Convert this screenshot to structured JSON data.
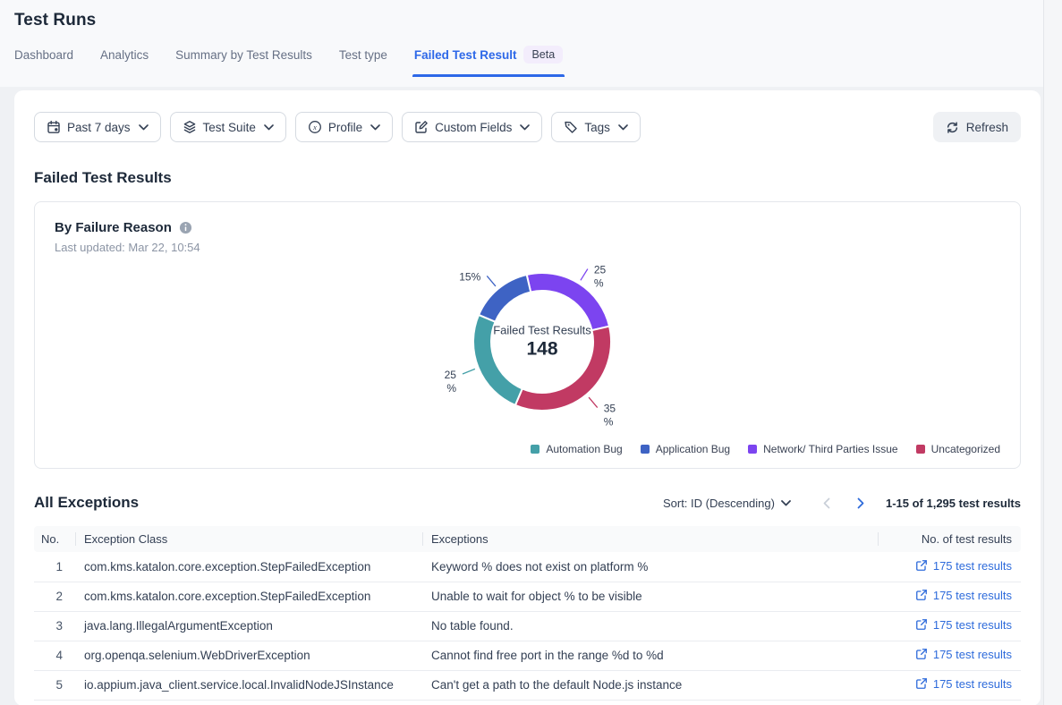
{
  "page": {
    "title": "Test Runs"
  },
  "tabs": [
    {
      "label": "Dashboard",
      "active": false
    },
    {
      "label": "Analytics",
      "active": false
    },
    {
      "label": "Summary by Test Results",
      "active": false
    },
    {
      "label": "Test type",
      "active": false
    },
    {
      "label": "Failed Test Result",
      "active": true,
      "badge": "Beta"
    }
  ],
  "filters": [
    {
      "label": "Past 7 days",
      "icon": "calendar-icon"
    },
    {
      "label": "Test Suite",
      "icon": "layers-icon"
    },
    {
      "label": "Profile",
      "icon": "variable-icon"
    },
    {
      "label": "Custom Fields",
      "icon": "custom-fields-icon"
    },
    {
      "label": "Tags",
      "icon": "tag-icon"
    }
  ],
  "toolbar": {
    "refresh_label": "Refresh"
  },
  "section": {
    "title": "Failed Test Results"
  },
  "chart_card": {
    "title": "By Failure Reason",
    "last_updated": "Last updated: Mar 22, 10:54",
    "center_label": "Failed Test Results",
    "center_value": "148"
  },
  "chart_data": {
    "type": "pie",
    "title": "By Failure Reason",
    "total_label": "Failed Test Results",
    "total": 148,
    "start_angle_deg": -13,
    "slices": [
      {
        "name": "Network/ Third Parties Issue",
        "pct": 25,
        "color": "#7C44F0",
        "label_lines": [
          "25",
          "%"
        ]
      },
      {
        "name": "Uncategorized",
        "pct": 35,
        "color": "#C13A63",
        "label_lines": [
          "35",
          "%"
        ]
      },
      {
        "name": "Automation Bug",
        "pct": 25,
        "color": "#44A0A8",
        "label_lines": [
          "25",
          "%"
        ]
      },
      {
        "name": "Application Bug",
        "pct": 15,
        "color": "#3E63C4",
        "label_lines": [
          "15%"
        ]
      }
    ],
    "legend": [
      "Automation Bug",
      "Application Bug",
      "Network/ Third Parties Issue",
      "Uncategorized"
    ],
    "legend_position": "bottom-right"
  },
  "exceptions": {
    "title": "All Exceptions",
    "sort_label": "Sort: ID (Descending)",
    "pagination": "1-15 of 1,295 test results",
    "columns": [
      "No.",
      "Exception Class",
      "Exceptions",
      "No. of test results"
    ],
    "rows": [
      {
        "no": "1",
        "exception_class": "com.kms.katalon.core.exception.StepFailedException",
        "exception": "Keyword % does not exist on platform %",
        "link": "175 test results"
      },
      {
        "no": "2",
        "exception_class": "com.kms.katalon.core.exception.StepFailedException",
        "exception": "Unable to wait for object % to be visible",
        "link": "175 test results"
      },
      {
        "no": "3",
        "exception_class": "java.lang.IllegalArgumentException",
        "exception": "No table found.",
        "link": "175 test results"
      },
      {
        "no": "4",
        "exception_class": "org.openqa.selenium.WebDriverException",
        "exception": "Cannot find free port in the range %d to %d",
        "link": "175 test results"
      },
      {
        "no": "5",
        "exception_class": "io.appium.java_client.service.local.InvalidNodeJSInstance",
        "exception": "Can't get a path to the default Node.js instance",
        "link": "175 test results"
      }
    ]
  },
  "colors": {
    "accent_blue": "#2D68E8",
    "link_blue": "#2E6BDB",
    "page_bg": "#EFF1F4",
    "topbar_bg": "#F8F9FB",
    "card_bg": "#FFFFFF",
    "border_gray": "#E4E7EC",
    "text_dark": "#1D2939",
    "text_slate": "#344054",
    "text_muted": "#667085"
  }
}
